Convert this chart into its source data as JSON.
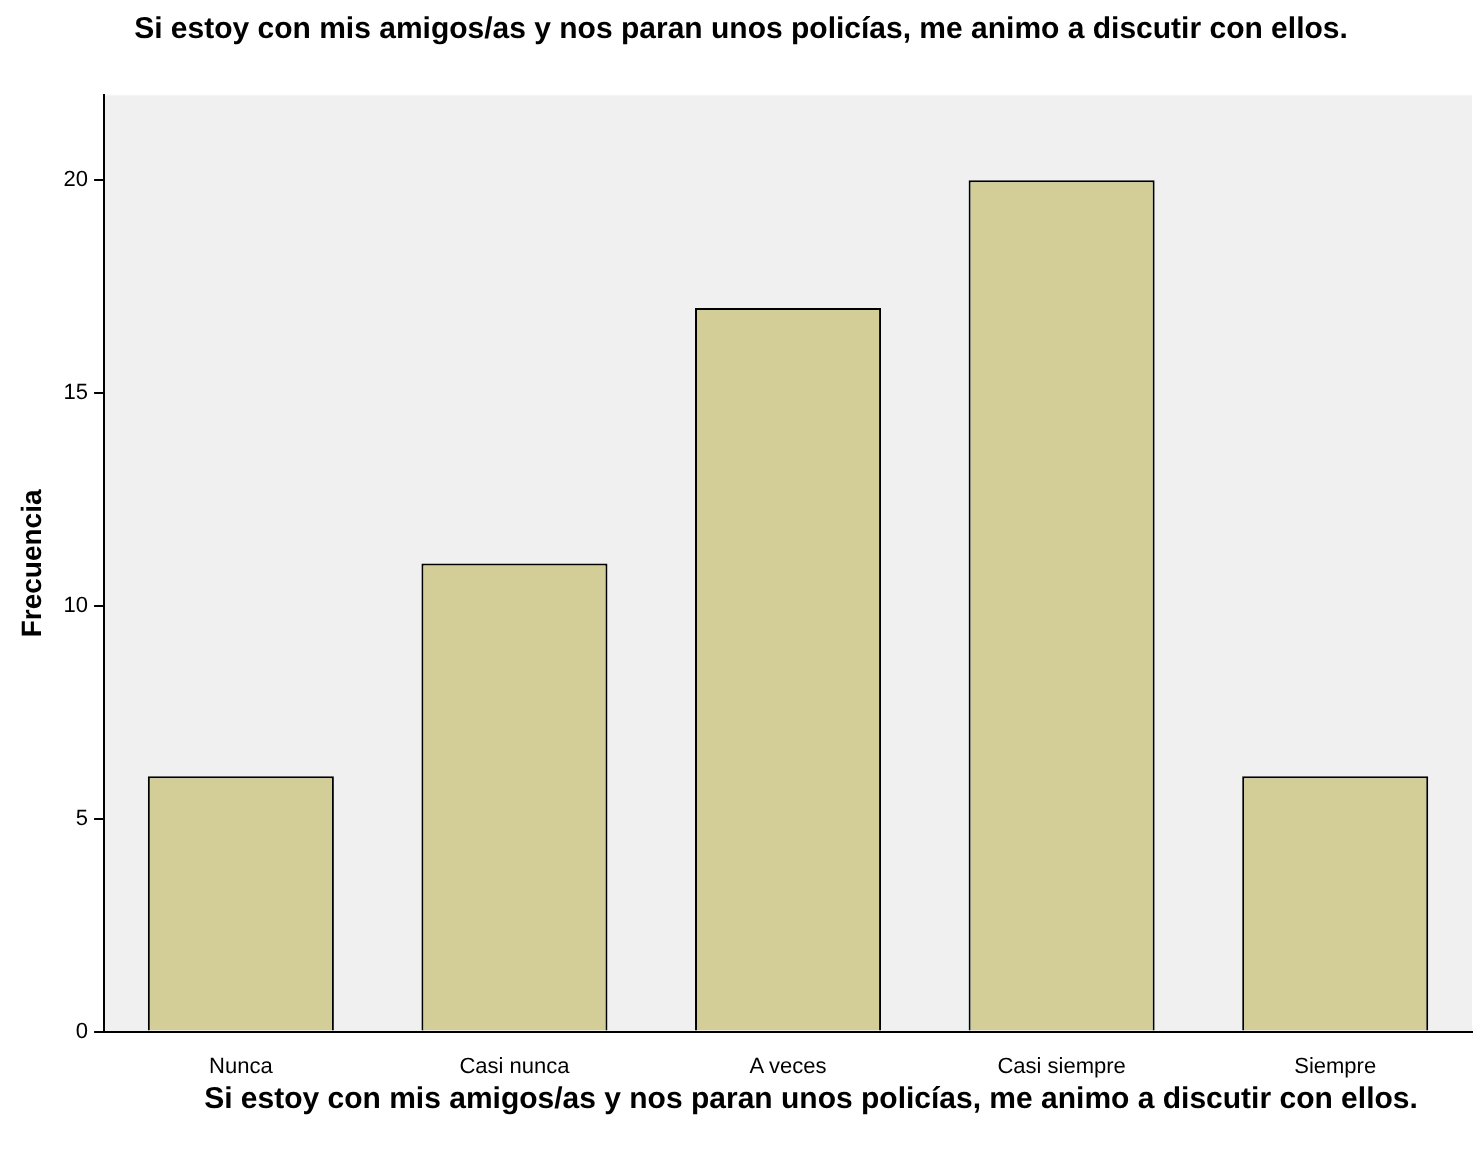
{
  "chart_data": {
    "type": "bar",
    "title": "Si estoy con mis amigos/as y nos paran unos policías, me animo a discutir con ellos.",
    "xlabel": "Si estoy con mis amigos/as y nos paran unos policías, me animo a discutir con ellos.",
    "ylabel": "Frecuencia",
    "categories": [
      "Nunca",
      "Casi nunca",
      "A veces",
      "Casi siempre",
      "Siempre"
    ],
    "values": [
      6,
      11,
      17,
      20,
      6
    ],
    "color": "#d3ce97",
    "ylim": [
      0,
      22
    ],
    "yticks": [
      0,
      5,
      10,
      15,
      20
    ],
    "grid": false,
    "legend": false
  }
}
